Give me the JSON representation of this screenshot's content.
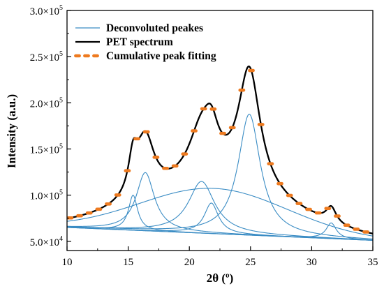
{
  "chart_data": {
    "type": "line",
    "xlabel": "2θ (º)",
    "ylabel": "Intensity (a.u.)",
    "xlim": [
      10,
      35
    ],
    "ylim": [
      40000,
      300000
    ],
    "xticks": [
      10,
      15,
      20,
      25,
      30,
      35
    ],
    "xtick_labels": [
      "10",
      "15",
      "20",
      "25",
      "30",
      "35"
    ],
    "yticks": [
      50000,
      100000,
      150000,
      200000,
      250000,
      300000
    ],
    "ytick_labels": [
      {
        "m": "5.0×10",
        "e": "4"
      },
      {
        "m": "1.0×10",
        "e": "5"
      },
      {
        "m": "1.5×10",
        "e": "5"
      },
      {
        "m": "2.0×10",
        "e": "5"
      },
      {
        "m": "2.5×10",
        "e": "5"
      },
      {
        "m": "3.0×10",
        "e": "5"
      }
    ],
    "legend": {
      "position": "top-left",
      "entries": [
        {
          "label": "Deconvoluted peakes",
          "style": "thin-line",
          "color": "#3a8cc4"
        },
        {
          "label": "PET spectrum",
          "style": "thick-line",
          "color": "#000000"
        },
        {
          "label": "Cumulative peak fitting",
          "style": "dots",
          "color": "#ee7a1f"
        }
      ]
    },
    "background": {
      "x": [
        10,
        35
      ],
      "y": [
        65000,
        51000
      ]
    },
    "peaks": [
      {
        "center": 15.4,
        "amplitude": 38000,
        "width": 0.45,
        "shape": "lorentz"
      },
      {
        "center": 16.4,
        "amplitude": 63000,
        "width": 0.9,
        "shape": "lorentz"
      },
      {
        "center": 21.0,
        "amplitude": 56000,
        "width": 1.3,
        "shape": "lorentz"
      },
      {
        "center": 21.8,
        "amplitude": 33000,
        "width": 0.7,
        "shape": "lorentz"
      },
      {
        "center": 22.0,
        "amplitude": 49000,
        "width": 6.0,
        "shape": "gauss"
      },
      {
        "center": 24.9,
        "amplitude": 131000,
        "width": 1.1,
        "shape": "lorentz"
      },
      {
        "center": 31.6,
        "amplitude": 17000,
        "width": 0.5,
        "shape": "lorentz"
      }
    ],
    "series_colors": {
      "deconvoluted": "#3a8cc4",
      "pet": "#000000",
      "fit": "#ee7a1f"
    }
  }
}
